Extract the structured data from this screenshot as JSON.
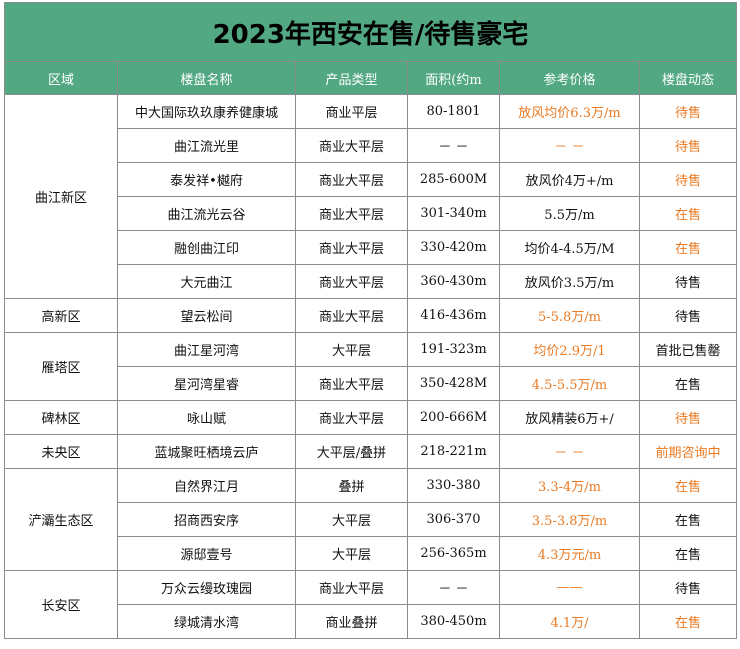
{
  "header": {
    "title": "2023年西安在售/待售豪宅"
  },
  "table": {
    "columns": [
      "区域",
      "楼盘名称",
      "产品类型",
      "面积(约m",
      "参考价格",
      "楼盘动态"
    ],
    "regions": [
      {
        "name": "曲江新区",
        "projects": [
          [
            "中大国际玖玖康养健康城",
            "商业平层",
            "80-1801",
            "放风均价6.3万/m",
            "待售"
          ],
          [
            "曲江流光里",
            "商业大平层",
            "－ －",
            "－ －",
            "待售"
          ],
          [
            "泰发祥•樾府",
            "商业大平层",
            "285-600M",
            "放风价4万+/m",
            "待售"
          ],
          [
            "曲江流光云谷",
            "商业大平层",
            "301-340m",
            "5.5万/m",
            "在售"
          ],
          [
            "融创曲江印",
            "商业大平层",
            "330-420m",
            "均价4-4.5万/M",
            "在售"
          ],
          [
            "大元曲江",
            "商业大平层",
            "360-430m",
            "放风价3.5万/m",
            "待售"
          ]
        ]
      },
      {
        "name": "高新区",
        "projects": [
          [
            "望云松间",
            "商业大平层",
            "416-436m",
            "5-5.8万/m",
            "待售"
          ]
        ]
      },
      {
        "name": "雁塔区",
        "projects": [
          [
            "曲江星河湾",
            "大平层",
            "191-323m",
            "均价2.9万/1",
            "首批已售罄"
          ],
          [
            "星河湾星睿",
            "商业大平层",
            "350-428M",
            "4.5-5.5万/m",
            "在售"
          ]
        ]
      },
      {
        "name": "碑林区",
        "projects": [
          [
            "咏山赋",
            "商业大平层",
            "200-666M",
            "放风精装6万+/",
            "待售"
          ]
        ]
      },
      {
        "name": "未央区",
        "projects": [
          [
            "蓝城聚旺栖境云庐",
            "大平层/叠拼",
            "218-221m",
            "－ －",
            "前期咨询中"
          ]
        ]
      },
      {
        "name": "浐灞生态区",
        "projects": [
          [
            "自然界江月",
            "叠拼",
            "330-380",
            "3.3-4万/m",
            "在售"
          ],
          [
            "招商西安序",
            "大平层",
            "306-370",
            "3.5-3.8万/m",
            "在售"
          ],
          [
            "源邸壹号",
            "大平层",
            "256-365m",
            "4.3万元/m",
            "在售"
          ]
        ]
      },
      {
        "name": "长安区",
        "projects": [
          [
            "万众云缦玫瑰园",
            "商业大平层",
            "－ －",
            "——",
            "待售"
          ],
          [
            "绿城清水湾",
            "商业叠拼",
            "380-450m",
            "4.1万/",
            "在售"
          ]
        ]
      }
    ]
  }
}
